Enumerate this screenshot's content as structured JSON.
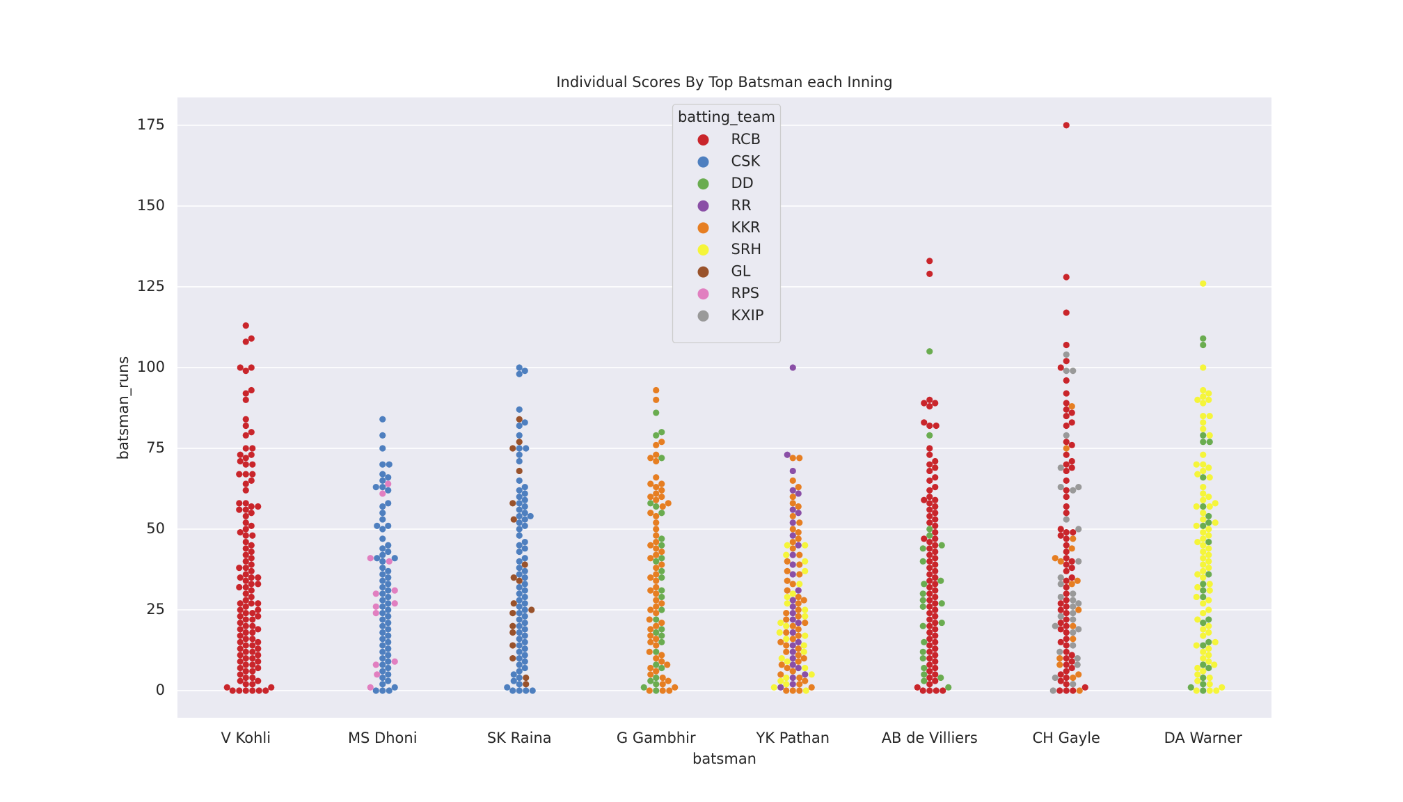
{
  "chart_data": {
    "type": "swarm",
    "title": "Individual Scores By Top Batsman each Inning",
    "x_label": "batsman",
    "y_label": "batsman_runs",
    "categories": [
      "V Kohli",
      "MS Dhoni",
      "SK Raina",
      "G Gambhir",
      "YK Pathan",
      "AB de Villiers",
      "CH Gayle",
      "DA Warner"
    ],
    "ylim": [
      -8.4,
      183.6
    ],
    "yticks": [
      0,
      25,
      50,
      75,
      100,
      125,
      150,
      175
    ],
    "grid": true,
    "legend": {
      "title": "batting_team",
      "position": "upper center"
    },
    "series": [
      {
        "name": "RCB",
        "color": "#c9252b",
        "values": [
          [
            113,
            109,
            108,
            100,
            100,
            99,
            93,
            92,
            90,
            84,
            82,
            80,
            79,
            75,
            75,
            73,
            73,
            72,
            71,
            70,
            70,
            67,
            67,
            67,
            65,
            64,
            62,
            58,
            58,
            57,
            57,
            56,
            56,
            55,
            54,
            52,
            51,
            50,
            49,
            48,
            48,
            46,
            45,
            44,
            43,
            42,
            41,
            40,
            39,
            38,
            38,
            37,
            36,
            35,
            35,
            35,
            34,
            33,
            33,
            32,
            32,
            31,
            30,
            29,
            28,
            27,
            27,
            27,
            26,
            25,
            25,
            24,
            24,
            23,
            23,
            22,
            22,
            21,
            20,
            20,
            19,
            19,
            18,
            18,
            17,
            16,
            16,
            15,
            15,
            14,
            14,
            13,
            13,
            12,
            12,
            11,
            11,
            10,
            10,
            9,
            9,
            8,
            8,
            7,
            7,
            6,
            6,
            5,
            4,
            4,
            3,
            3,
            2,
            2,
            1,
            1,
            0,
            0,
            0,
            0,
            0,
            0
          ],
          [],
          [],
          [],
          [],
          [
            133,
            129,
            90,
            89,
            89,
            88,
            83,
            82,
            82,
            75,
            73,
            71,
            70,
            69,
            68,
            66,
            65,
            63,
            62,
            60,
            59,
            59,
            58,
            57,
            56,
            55,
            54,
            53,
            52,
            51,
            49,
            47,
            47,
            46,
            45,
            44,
            43,
            42,
            41,
            40,
            39,
            38,
            37,
            36,
            35,
            34,
            33,
            32,
            31,
            30,
            29,
            28,
            27,
            26,
            25,
            24,
            23,
            22,
            21,
            20,
            19,
            18,
            17,
            16,
            15,
            14,
            13,
            12,
            11,
            10,
            9,
            8,
            7,
            6,
            5,
            4,
            3,
            2,
            1,
            0,
            0,
            0,
            0
          ],
          [
            175,
            128,
            117,
            107,
            102,
            100,
            96,
            92,
            89,
            87,
            86,
            85,
            83,
            82,
            77,
            76,
            73,
            71,
            70,
            69,
            68,
            65,
            62,
            60,
            57,
            55,
            50,
            49,
            49,
            48,
            47,
            45,
            43,
            41,
            40,
            39,
            38,
            37,
            35,
            34,
            32,
            30,
            28,
            27,
            26,
            25,
            24,
            22,
            21,
            20,
            19,
            18,
            16,
            15,
            14,
            12,
            11,
            10,
            9,
            8,
            7,
            6,
            5,
            4,
            3,
            2,
            1,
            0,
            0,
            0
          ],
          []
        ]
      },
      {
        "name": "CSK",
        "color": "#4e7fbf",
        "values": [
          [],
          [
            84,
            79,
            75,
            70,
            70,
            67,
            66,
            65,
            63,
            63,
            62,
            58,
            57,
            55,
            53,
            51,
            51,
            50,
            47,
            45,
            44,
            43,
            42,
            41,
            41,
            40,
            38,
            37,
            36,
            35,
            34,
            33,
            32,
            31,
            30,
            29,
            28,
            27,
            26,
            25,
            24,
            23,
            22,
            21,
            20,
            19,
            18,
            17,
            16,
            15,
            14,
            13,
            12,
            11,
            10,
            9,
            8,
            7,
            6,
            5,
            4,
            3,
            2,
            1,
            0,
            0,
            0
          ],
          [
            100,
            99,
            98,
            87,
            83,
            82,
            79,
            75,
            75,
            73,
            71,
            65,
            63,
            62,
            61,
            60,
            59,
            58,
            57,
            56,
            55,
            54,
            54,
            53,
            52,
            51,
            50,
            48,
            46,
            45,
            44,
            43,
            41,
            40,
            38,
            37,
            36,
            35,
            33,
            32,
            31,
            30,
            29,
            28,
            27,
            26,
            25,
            24,
            23,
            22,
            21,
            20,
            19,
            18,
            17,
            16,
            15,
            14,
            13,
            12,
            11,
            10,
            9,
            8,
            7,
            6,
            5,
            4,
            3,
            2,
            1,
            0,
            0,
            0,
            0
          ],
          [],
          [],
          [],
          [],
          []
        ]
      },
      {
        "name": "DD",
        "color": "#6aac50",
        "values": [
          [],
          [],
          [],
          [
            86,
            80,
            79,
            72,
            58,
            57,
            55,
            47,
            45,
            41,
            40,
            37,
            35,
            31,
            29,
            25,
            22,
            19,
            18,
            17,
            15,
            12,
            8,
            7,
            4,
            3,
            2,
            1,
            0
          ],
          [],
          [
            105,
            79,
            50,
            48,
            45,
            44,
            40,
            34,
            33,
            30,
            28,
            27,
            26,
            21,
            20,
            15,
            12,
            10,
            7,
            5,
            4,
            3,
            1
          ],
          [],
          [
            109,
            107,
            79,
            77,
            77,
            66,
            57,
            54,
            52,
            51,
            46,
            36,
            33,
            31,
            29,
            22,
            21,
            15,
            14,
            8,
            7,
            4,
            2,
            1,
            0
          ]
        ]
      },
      {
        "name": "RR",
        "color": "#8a4fa6",
        "values": [
          [],
          [],
          [],
          [],
          [
            100,
            73,
            68,
            62,
            61,
            56,
            55,
            52,
            48,
            45,
            42,
            39,
            36,
            31,
            28,
            26,
            24,
            22,
            21,
            18,
            15,
            14,
            12,
            10,
            8,
            7,
            5,
            4,
            2,
            1
          ],
          [],
          [],
          []
        ]
      },
      {
        "name": "KKR",
        "color": "#e67e22",
        "values": [
          [],
          [],
          [],
          [
            93,
            90,
            77,
            76,
            73,
            72,
            71,
            66,
            64,
            64,
            63,
            62,
            61,
            60,
            60,
            59,
            58,
            57,
            55,
            54,
            52,
            50,
            48,
            46,
            45,
            44,
            43,
            42,
            41,
            39,
            38,
            36,
            35,
            34,
            32,
            31,
            30,
            28,
            27,
            26,
            25,
            24,
            22,
            21,
            20,
            19,
            17,
            16,
            15,
            14,
            12,
            11,
            10,
            9,
            8,
            7,
            6,
            5,
            4,
            3,
            2,
            1,
            0,
            0,
            0
          ],
          [
            72,
            72,
            65,
            63,
            60,
            58,
            57,
            54,
            52,
            50,
            49,
            47,
            46,
            44,
            42,
            40,
            39,
            37,
            36,
            34,
            33,
            31,
            29,
            28,
            27,
            25,
            24,
            23,
            22,
            21,
            20,
            19,
            18,
            17,
            16,
            15,
            14,
            13,
            12,
            11,
            10,
            9,
            8,
            7,
            6,
            5,
            4,
            3,
            2,
            1,
            0,
            0,
            0
          ],
          [],
          [
            88,
            75,
            47,
            44,
            41,
            40,
            34,
            33,
            25,
            20,
            16,
            10,
            8,
            5,
            4,
            0
          ],
          []
        ]
      },
      {
        "name": "SRH",
        "color": "#f5f53a",
        "values": [
          [],
          [],
          [],
          [],
          [
            45,
            45,
            42,
            40,
            37,
            33,
            30,
            29,
            27,
            25,
            23,
            21,
            20,
            18,
            17,
            16,
            14,
            12,
            10,
            9,
            7,
            5,
            4,
            3,
            2,
            1,
            0
          ],
          [],
          [],
          [
            126,
            100,
            93,
            92,
            91,
            90,
            90,
            89,
            85,
            85,
            83,
            81,
            79,
            73,
            70,
            70,
            69,
            68,
            67,
            66,
            63,
            61,
            60,
            59,
            58,
            57,
            57,
            55,
            53,
            52,
            51,
            50,
            49,
            48,
            47,
            46,
            45,
            44,
            43,
            42,
            41,
            40,
            39,
            38,
            37,
            36,
            35,
            33,
            32,
            31,
            29,
            28,
            27,
            25,
            24,
            22,
            20,
            19,
            18,
            17,
            15,
            14,
            13,
            12,
            11,
            10,
            9,
            8,
            7,
            6,
            5,
            4,
            3,
            2,
            1,
            0,
            0,
            0
          ]
        ]
      },
      {
        "name": "GL",
        "color": "#99522b",
        "values": [
          [],
          [],
          [
            84,
            77,
            75,
            68,
            58,
            53,
            39,
            35,
            34,
            27,
            25,
            24,
            20,
            18,
            14,
            10,
            4,
            2
          ],
          [],
          [],
          [],
          [],
          []
        ]
      },
      {
        "name": "RPS",
        "color": "#e17fc0",
        "values": [
          [],
          [
            64,
            61,
            41,
            40,
            31,
            30,
            27,
            26,
            24,
            9,
            8,
            5,
            1
          ],
          [],
          [],
          [],
          [],
          [],
          []
        ]
      },
      {
        "name": "KXIP",
        "color": "#999999",
        "values": [
          [],
          [],
          [],
          [],
          [],
          [],
          [
            104,
            99,
            99,
            79,
            69,
            63,
            63,
            62,
            53,
            50,
            40,
            35,
            33,
            30,
            29,
            28,
            27,
            26,
            24,
            23,
            22,
            20,
            19,
            18,
            14,
            12,
            10,
            8,
            4,
            2,
            0
          ],
          []
        ]
      }
    ]
  }
}
